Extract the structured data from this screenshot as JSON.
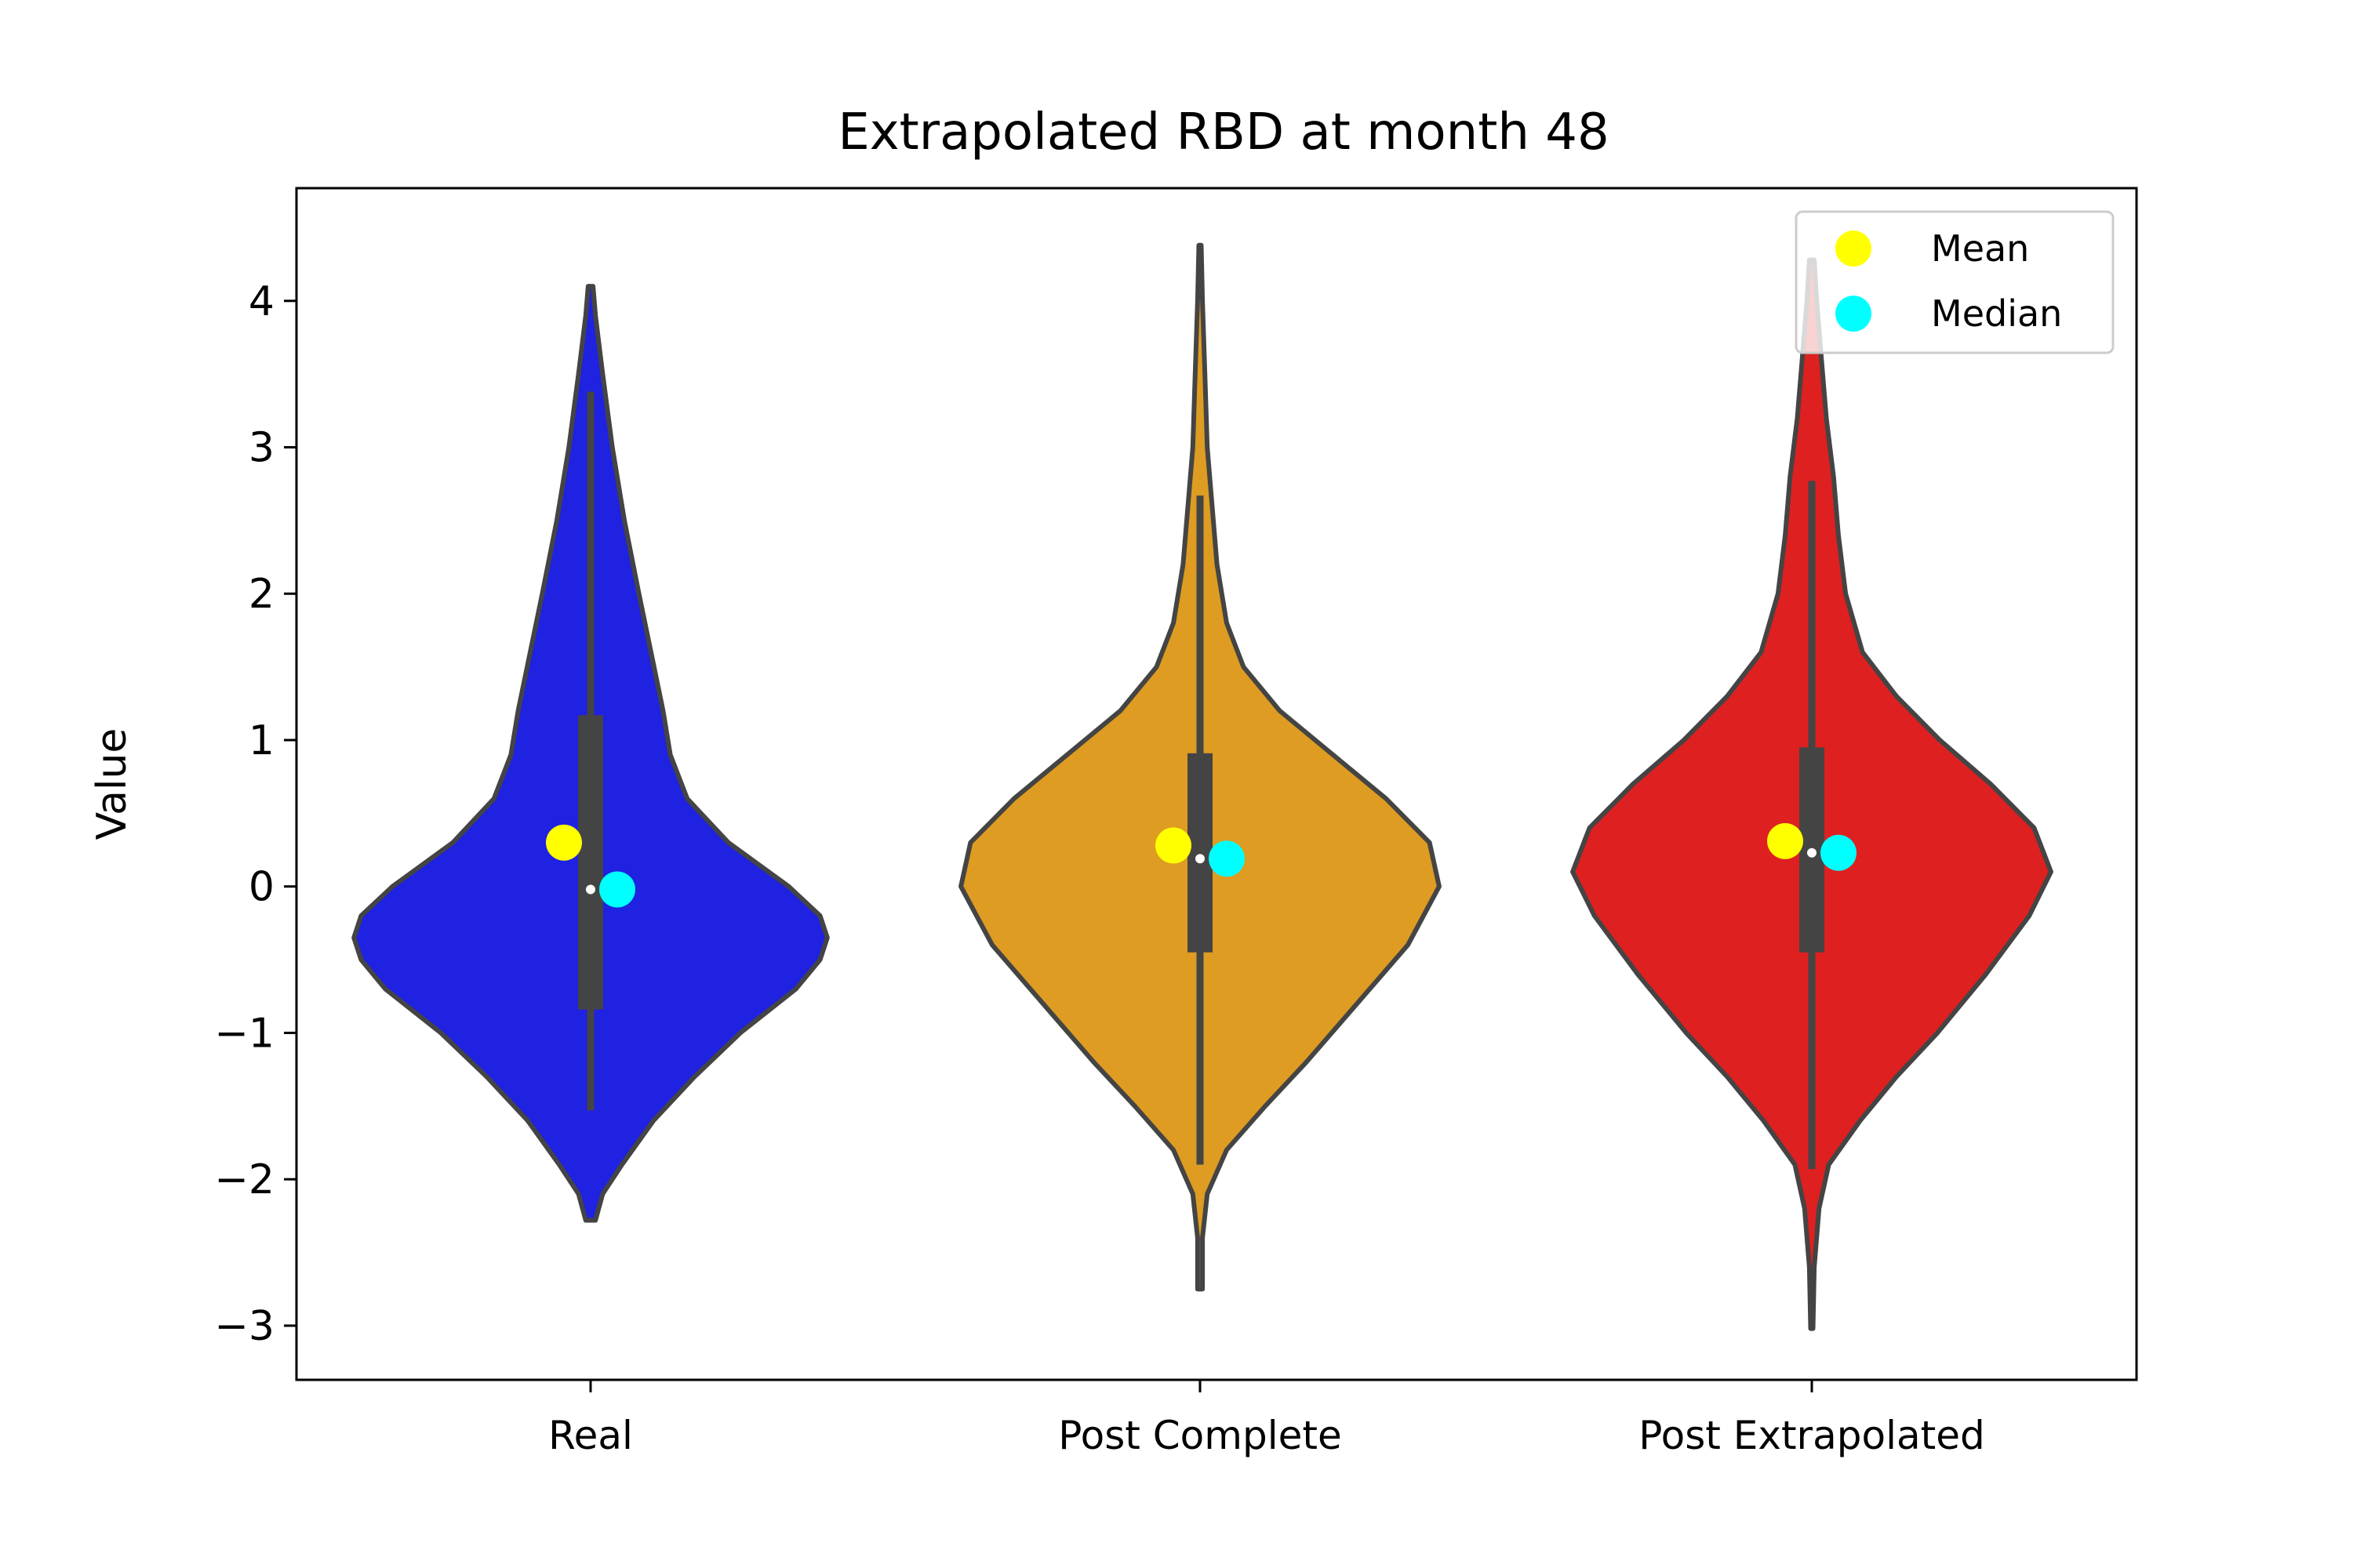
{
  "chart_data": {
    "type": "violin",
    "title": "Extrapolated RBD at month 48",
    "xlabel": "",
    "ylabel": "Value",
    "ylim": [
      -3.37,
      4.77
    ],
    "yticks": [
      4,
      3,
      2,
      1,
      0,
      -1,
      -2,
      -3
    ],
    "ytick_labels": [
      "4",
      "3",
      "2",
      "1",
      "0",
      "−1",
      "−2",
      "−3"
    ],
    "categories": [
      "Real",
      "Post Complete",
      "Post Extrapolated"
    ],
    "grid": false,
    "legend": {
      "placement": "top-right",
      "entries": [
        {
          "label": "Mean",
          "color": "#ffff00"
        },
        {
          "label": "Median",
          "color": "#00ffff"
        }
      ]
    },
    "series": [
      {
        "category": "Real",
        "color": "#1f22e0",
        "mean": 0.3,
        "median": -0.02,
        "q1": -0.84,
        "q3": 1.17,
        "whisker_low": -1.53,
        "whisker_high": 3.38,
        "kde_min": -2.28,
        "kde_max": 4.1,
        "density": [
          [
            -2.28,
            0.02
          ],
          [
            -2.1,
            0.05
          ],
          [
            -1.9,
            0.13
          ],
          [
            -1.6,
            0.26
          ],
          [
            -1.3,
            0.43
          ],
          [
            -1.0,
            0.62
          ],
          [
            -0.7,
            0.85
          ],
          [
            -0.5,
            0.95
          ],
          [
            -0.35,
            0.98
          ],
          [
            -0.2,
            0.95
          ],
          [
            0.0,
            0.82
          ],
          [
            0.3,
            0.57
          ],
          [
            0.6,
            0.4
          ],
          [
            0.9,
            0.33
          ],
          [
            1.2,
            0.3
          ],
          [
            1.6,
            0.25
          ],
          [
            2.0,
            0.2
          ],
          [
            2.5,
            0.14
          ],
          [
            3.0,
            0.09
          ],
          [
            3.5,
            0.05
          ],
          [
            3.9,
            0.02
          ],
          [
            4.1,
            0.01
          ]
        ]
      },
      {
        "category": "Post Complete",
        "color": "#de9c22",
        "mean": 0.28,
        "median": 0.19,
        "q1": -0.45,
        "q3": 0.91,
        "whisker_low": -1.9,
        "whisker_high": 2.67,
        "kde_min": -2.75,
        "kde_max": 4.38,
        "density": [
          [
            -2.75,
            0.01
          ],
          [
            -2.4,
            0.01
          ],
          [
            -2.1,
            0.03
          ],
          [
            -1.8,
            0.11
          ],
          [
            -1.5,
            0.27
          ],
          [
            -1.2,
            0.44
          ],
          [
            -0.8,
            0.65
          ],
          [
            -0.4,
            0.86
          ],
          [
            0.0,
            0.99
          ],
          [
            0.3,
            0.95
          ],
          [
            0.6,
            0.77
          ],
          [
            0.9,
            0.55
          ],
          [
            1.2,
            0.33
          ],
          [
            1.5,
            0.18
          ],
          [
            1.8,
            0.11
          ],
          [
            2.2,
            0.07
          ],
          [
            2.6,
            0.05
          ],
          [
            3.0,
            0.03
          ],
          [
            3.5,
            0.02
          ],
          [
            4.0,
            0.01
          ],
          [
            4.38,
            0.005
          ]
        ]
      },
      {
        "category": "Post Extrapolated",
        "color": "#de2020",
        "mean": 0.31,
        "median": 0.23,
        "q1": -0.45,
        "q3": 0.95,
        "whisker_low": -1.93,
        "whisker_high": 2.77,
        "kde_min": -3.02,
        "kde_max": 4.28,
        "density": [
          [
            -3.02,
            0.005
          ],
          [
            -2.6,
            0.01
          ],
          [
            -2.2,
            0.03
          ],
          [
            -1.9,
            0.07
          ],
          [
            -1.6,
            0.2
          ],
          [
            -1.3,
            0.35
          ],
          [
            -1.0,
            0.52
          ],
          [
            -0.6,
            0.72
          ],
          [
            -0.2,
            0.9
          ],
          [
            0.1,
            0.99
          ],
          [
            0.4,
            0.92
          ],
          [
            0.7,
            0.74
          ],
          [
            1.0,
            0.53
          ],
          [
            1.3,
            0.35
          ],
          [
            1.6,
            0.21
          ],
          [
            2.0,
            0.14
          ],
          [
            2.4,
            0.11
          ],
          [
            2.8,
            0.09
          ],
          [
            3.2,
            0.06
          ],
          [
            3.6,
            0.04
          ],
          [
            4.0,
            0.02
          ],
          [
            4.28,
            0.01
          ]
        ]
      }
    ]
  }
}
